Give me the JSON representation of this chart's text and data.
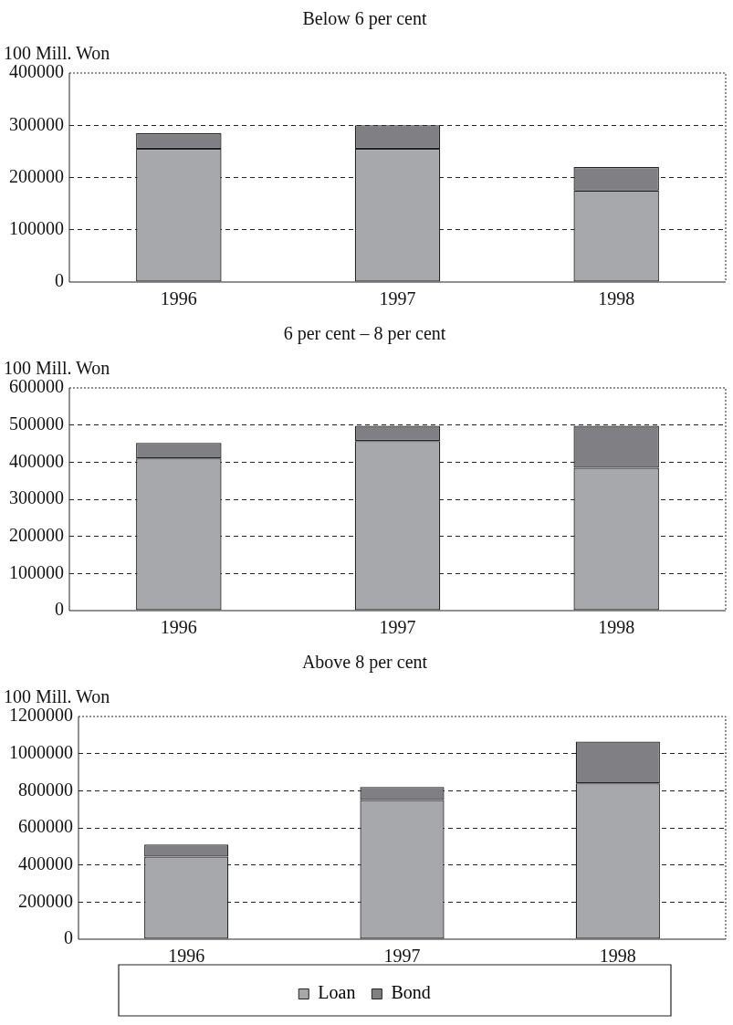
{
  "chart_data": [
    {
      "type": "bar",
      "title": "Below 6 per cent",
      "ylabel": "100 Mill. Won",
      "categories": [
        "1996",
        "1997",
        "1998"
      ],
      "stacked": true,
      "series": [
        {
          "color": "#a7a8ac",
          "values": [
            255000,
            255000,
            175000
          ]
        },
        {
          "color": "#808084",
          "values": [
            30000,
            45000,
            45000
          ]
        }
      ],
      "ylim": [
        0,
        400000
      ],
      "yticks": [
        0,
        100000,
        200000,
        300000,
        400000
      ],
      "grid": "y",
      "legend": false
    },
    {
      "type": "bar",
      "title": "6 per cent – 8 per cent",
      "ylabel": "100 Mill. Won",
      "categories": [
        "1996",
        "1997",
        "1998"
      ],
      "stacked": true,
      "series": [
        {
          "color": "#a7a8ac",
          "values": [
            410000,
            457000,
            385000
          ]
        },
        {
          "color": "#808084",
          "values": [
            42000,
            41000,
            113000
          ]
        }
      ],
      "ylim": [
        0,
        600000
      ],
      "yticks": [
        0,
        100000,
        200000,
        300000,
        400000,
        500000,
        600000
      ],
      "grid": "y",
      "legend": false
    },
    {
      "type": "bar",
      "title": "Above 8 per cent",
      "ylabel": "100 Mill. Won",
      "categories": [
        "1996",
        "1997",
        "1998"
      ],
      "stacked": true,
      "series": [
        {
          "name": "Loan",
          "color": "#a7a8ac",
          "values": [
            445000,
            750000,
            840000
          ]
        },
        {
          "name": "Bond",
          "color": "#808084",
          "values": [
            65000,
            70000,
            225000
          ]
        }
      ],
      "ylim": [
        0,
        1200000
      ],
      "yticks": [
        0,
        200000,
        400000,
        600000,
        800000,
        1000000,
        1200000
      ],
      "grid": "y",
      "legend": "bottom"
    }
  ]
}
